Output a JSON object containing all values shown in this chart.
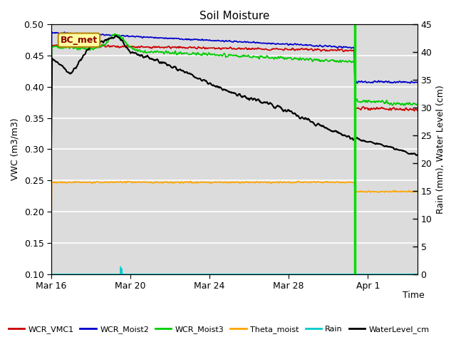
{
  "title": "Soil Moisture",
  "xlabel": "Time",
  "ylabel_left": "VWC (m3/m3)",
  "ylabel_right": "Rain (mm), Water Level (cm)",
  "ylim_left": [
    0.1,
    0.5
  ],
  "ylim_right": [
    0,
    45
  ],
  "plot_bg_color": "#dcdcdc",
  "legend_label": "BC_met",
  "series": {
    "WCR_VMC1": {
      "color": "#cc0000"
    },
    "WCR_Moist2": {
      "color": "#0000cc"
    },
    "WCR_Moist3": {
      "color": "#00cc00"
    },
    "Theta_moist": {
      "color": "#ffa500"
    },
    "Rain": {
      "color": "#00cccc"
    },
    "WaterLevel_cm": {
      "color": "#000000"
    }
  },
  "xtick_days": [
    0,
    4,
    8,
    12,
    16
  ],
  "xtick_labels": [
    "Mar 16",
    "Mar 20",
    "Mar 24",
    "Mar 28",
    "Apr 1"
  ],
  "yticks_left": [
    0.1,
    0.15,
    0.2,
    0.25,
    0.3,
    0.35,
    0.4,
    0.45,
    0.5
  ],
  "yticks_right": [
    0,
    5,
    10,
    15,
    20,
    25,
    30,
    35,
    40,
    45
  ],
  "xlim": [
    0,
    18.5
  ],
  "drop_day": 15.33,
  "n_days": 19,
  "seed": 10
}
